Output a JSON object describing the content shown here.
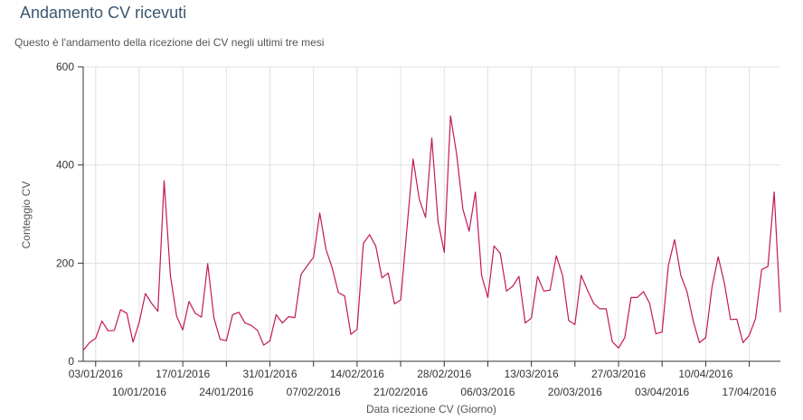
{
  "header": {
    "title": "Andamento CV ricevuti",
    "subtitle": "Questo è l'andamento della ricezione dei CV negli ultimi tre mesi"
  },
  "chart_data": {
    "type": "line",
    "xlabel": "Data ricezione CV (Giorno)",
    "ylabel": "Conteggio CV",
    "ylim": [
      0,
      600
    ],
    "yticks": [
      0,
      200,
      400,
      600
    ],
    "x_start": "2016-01-01",
    "x_end": "2016-04-22",
    "xticks_top": [
      "03/01/2016",
      "17/01/2016",
      "31/01/2016",
      "14/02/2016",
      "28/02/2016",
      "13/03/2016",
      "27/03/2016",
      "10/04/2016"
    ],
    "xticks_bottom": [
      "10/01/2016",
      "24/01/2016",
      "07/02/2016",
      "21/02/2016",
      "06/03/2016",
      "20/03/2016",
      "03/04/2016",
      "17/04/2016"
    ],
    "xtick_dates_top": [
      "2016-01-03",
      "2016-01-17",
      "2016-01-31",
      "2016-02-14",
      "2016-02-28",
      "2016-03-13",
      "2016-03-27",
      "2016-04-10"
    ],
    "xtick_dates_bottom": [
      "2016-01-10",
      "2016-01-24",
      "2016-02-07",
      "2016-02-21",
      "2016-03-06",
      "2016-03-20",
      "2016-04-03",
      "2016-04-17"
    ],
    "grid": true,
    "line_color": "#c2185b",
    "x": [
      "2016-01-01",
      "2016-01-02",
      "2016-01-03",
      "2016-01-04",
      "2016-01-05",
      "2016-01-06",
      "2016-01-07",
      "2016-01-08",
      "2016-01-09",
      "2016-01-10",
      "2016-01-11",
      "2016-01-12",
      "2016-01-13",
      "2016-01-14",
      "2016-01-15",
      "2016-01-16",
      "2016-01-17",
      "2016-01-18",
      "2016-01-19",
      "2016-01-20",
      "2016-01-21",
      "2016-01-22",
      "2016-01-23",
      "2016-01-24",
      "2016-01-25",
      "2016-01-26",
      "2016-01-27",
      "2016-01-28",
      "2016-01-29",
      "2016-01-30",
      "2016-01-31",
      "2016-02-01",
      "2016-02-02",
      "2016-02-03",
      "2016-02-04",
      "2016-02-05",
      "2016-02-06",
      "2016-02-07",
      "2016-02-08",
      "2016-02-09",
      "2016-02-10",
      "2016-02-11",
      "2016-02-12",
      "2016-02-13",
      "2016-02-14",
      "2016-02-15",
      "2016-02-16",
      "2016-02-17",
      "2016-02-18",
      "2016-02-19",
      "2016-02-20",
      "2016-02-21",
      "2016-02-22",
      "2016-02-23",
      "2016-02-24",
      "2016-02-25",
      "2016-02-26",
      "2016-02-27",
      "2016-02-28",
      "2016-02-29",
      "2016-03-01",
      "2016-03-02",
      "2016-03-03",
      "2016-03-04",
      "2016-03-05",
      "2016-03-06",
      "2016-03-07",
      "2016-03-08",
      "2016-03-09",
      "2016-03-10",
      "2016-03-11",
      "2016-03-12",
      "2016-03-13",
      "2016-03-14",
      "2016-03-15",
      "2016-03-16",
      "2016-03-17",
      "2016-03-18",
      "2016-03-19",
      "2016-03-20",
      "2016-03-21",
      "2016-03-22",
      "2016-03-23",
      "2016-03-24",
      "2016-03-25",
      "2016-03-26",
      "2016-03-27",
      "2016-03-28",
      "2016-03-29",
      "2016-03-30",
      "2016-03-31",
      "2016-04-01",
      "2016-04-02",
      "2016-04-03",
      "2016-04-04",
      "2016-04-05",
      "2016-04-06",
      "2016-04-07",
      "2016-04-08",
      "2016-04-09",
      "2016-04-10",
      "2016-04-11",
      "2016-04-12",
      "2016-04-13",
      "2016-04-14",
      "2016-04-15",
      "2016-04-16",
      "2016-04-17",
      "2016-04-18",
      "2016-04-19",
      "2016-04-20",
      "2016-04-21",
      "2016-04-22"
    ],
    "values": [
      22,
      38,
      47,
      82,
      62,
      63,
      105,
      98,
      39,
      80,
      138,
      118,
      102,
      368,
      175,
      92,
      64,
      122,
      98,
      90,
      199,
      88,
      45,
      42,
      95,
      100,
      78,
      73,
      63,
      33,
      42,
      95,
      78,
      91,
      89,
      177,
      195,
      212,
      302,
      228,
      190,
      140,
      133,
      55,
      65,
      240,
      258,
      235,
      170,
      180,
      117,
      125,
      270,
      412,
      330,
      293,
      455,
      285,
      222,
      500,
      422,
      310,
      265,
      345,
      175,
      130,
      235,
      220,
      143,
      153,
      173,
      78,
      88,
      173,
      143,
      145,
      215,
      175,
      83,
      75,
      175,
      145,
      118,
      107,
      107,
      40,
      27,
      48,
      130,
      130,
      142,
      118,
      56,
      60,
      195,
      248,
      175,
      142,
      82,
      38,
      48,
      150,
      213,
      160,
      85,
      86,
      38,
      53,
      87,
      187,
      193,
      345,
      100
    ]
  }
}
